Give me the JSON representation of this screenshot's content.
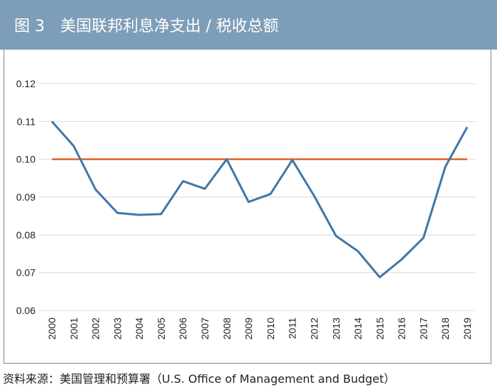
{
  "header": {
    "figure_label": "图 3",
    "title": "美国联邦利息净支出 / 税收总额"
  },
  "source": "资料来源：美国管理和预算署（U.S. Office of Management and Budget）",
  "colors": {
    "header_bg": "#7d9db8",
    "series_line": "#3f77a8",
    "reference_line": "#e2622a"
  },
  "chart_data": {
    "type": "line",
    "x": [
      "2000",
      "2001",
      "2002",
      "2003",
      "2004",
      "2005",
      "2006",
      "2007",
      "2008",
      "2009",
      "2010",
      "2011",
      "2012",
      "2013",
      "2014",
      "2015",
      "2016",
      "2017",
      "2018",
      "2019"
    ],
    "series": [
      {
        "values": [
          0.11,
          0.1035,
          0.092,
          0.0858,
          0.0853,
          0.0855,
          0.0942,
          0.0922,
          0.1,
          0.0887,
          0.0908,
          0.0998,
          0.0903,
          0.0797,
          0.0757,
          0.0688,
          0.0735,
          0.0792,
          0.098,
          0.1085
        ]
      }
    ],
    "reference_line": 0.1,
    "yticks": [
      "0.06",
      "0.07",
      "0.08",
      "0.09",
      "0.10",
      "0.11",
      "0.12"
    ],
    "ylim": [
      0.06,
      0.12
    ],
    "grid": "horizontal"
  }
}
